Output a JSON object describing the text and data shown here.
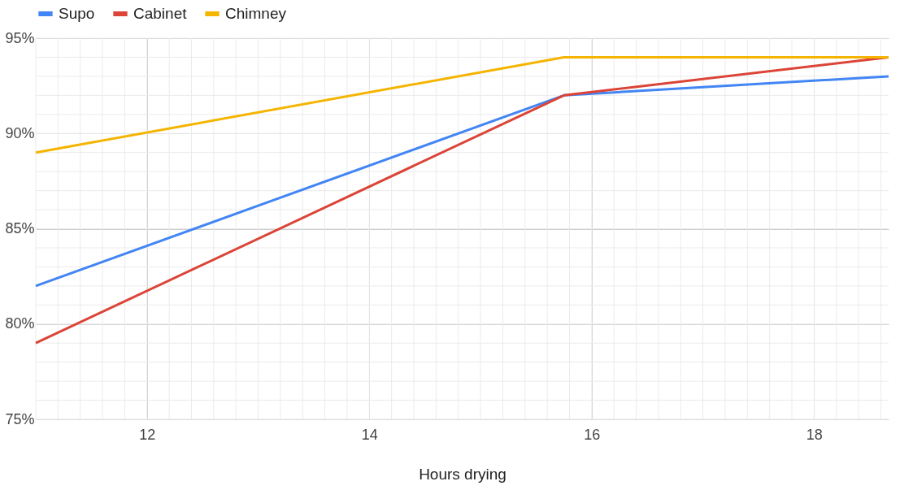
{
  "chart_data": {
    "type": "line",
    "xlabel": "Hours drying",
    "x": [
      11,
      15.75,
      18.67
    ],
    "series": [
      {
        "name": "Supo",
        "color": "#4285f4",
        "values": [
          82,
          92,
          93
        ]
      },
      {
        "name": "Cabinet",
        "color": "#db4437",
        "values": [
          79,
          92,
          94
        ]
      },
      {
        "name": "Chimney",
        "color": "#f4b400",
        "values": [
          89,
          94,
          94
        ]
      }
    ],
    "xlim": [
      11,
      18.67
    ],
    "xticks": [
      12,
      14,
      16,
      18
    ],
    "ylim": [
      75,
      95
    ],
    "yticks": [
      {
        "value": 75,
        "label": "75%"
      },
      {
        "value": 80,
        "label": "80%"
      },
      {
        "value": 85,
        "label": "85%"
      },
      {
        "value": 90,
        "label": "90%"
      },
      {
        "value": 95,
        "label": "95%"
      }
    ],
    "grid": true,
    "legend": "top",
    "marker": "none",
    "line_style": "solid"
  }
}
